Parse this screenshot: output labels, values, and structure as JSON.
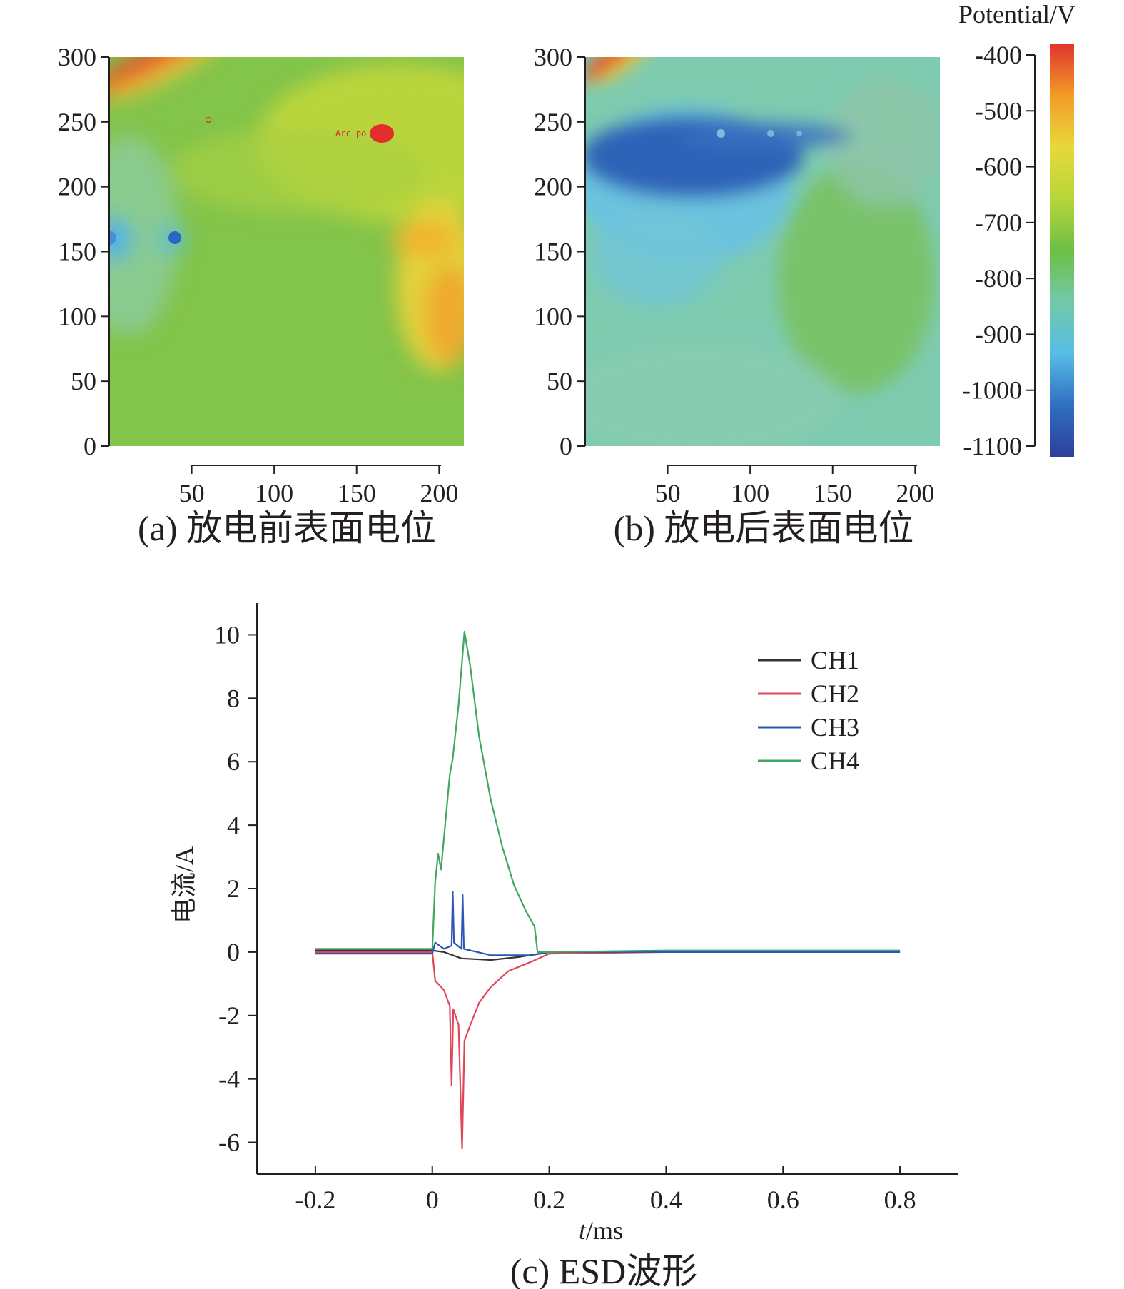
{
  "heatmaps": [
    {
      "caption": "(a) 放电前表面电位",
      "x_ticks": [
        "50",
        "100",
        "150",
        "200"
      ],
      "y_ticks": [
        "0",
        "50",
        "100",
        "150",
        "200",
        "250",
        "300"
      ],
      "annotation": "Arc po",
      "x_range": [
        0,
        215
      ],
      "y_range": [
        0,
        300
      ]
    },
    {
      "caption": "(b) 放电后表面电位",
      "x_ticks": [
        "50",
        "100",
        "150",
        "200"
      ],
      "y_ticks": [
        "0",
        "50",
        "100",
        "150",
        "200",
        "250",
        "300"
      ],
      "x_range": [
        0,
        215
      ],
      "y_range": [
        0,
        300
      ]
    }
  ],
  "colorbar": {
    "title": "Potential/V",
    "ticks": [
      "-400",
      "-500",
      "-600",
      "-700",
      "-800",
      "-900",
      "-1000",
      "-1100"
    ],
    "range": [
      -1100,
      -400
    ],
    "colors": [
      "#2f3f9c",
      "#2f6fc0",
      "#56bde6",
      "#72c9a8",
      "#6dbf45",
      "#b6d63a",
      "#e8d83a",
      "#f39c28",
      "#e0352a"
    ]
  },
  "chart_data": {
    "type": "line",
    "caption": "(c)  ESD波形",
    "xlabel": "t/ms",
    "ylabel": "电流/A",
    "xlim": [
      -0.3,
      0.9
    ],
    "ylim": [
      -7,
      11
    ],
    "x_ticks": [
      "-0.2",
      "0",
      "0.2",
      "0.4",
      "0.6",
      "0.8"
    ],
    "y_ticks": [
      "-6",
      "-4",
      "-2",
      "0",
      "2",
      "4",
      "6",
      "8",
      "10"
    ],
    "legend_position": "top-right",
    "series": [
      {
        "name": "CH1",
        "color": "#333333",
        "points": [
          [
            -0.2,
            0.05
          ],
          [
            0.0,
            0.05
          ],
          [
            0.02,
            0.0
          ],
          [
            0.05,
            -0.2
          ],
          [
            0.1,
            -0.25
          ],
          [
            0.15,
            -0.15
          ],
          [
            0.2,
            0.0
          ],
          [
            0.4,
            0.0
          ],
          [
            0.6,
            0.0
          ],
          [
            0.8,
            0.0
          ]
        ]
      },
      {
        "name": "CH2",
        "color": "#e0485a",
        "points": [
          [
            -0.2,
            0.0
          ],
          [
            0.0,
            0.0
          ],
          [
            0.005,
            -0.9
          ],
          [
            0.02,
            -1.2
          ],
          [
            0.03,
            -1.7
          ],
          [
            0.033,
            -4.2
          ],
          [
            0.036,
            -1.8
          ],
          [
            0.045,
            -2.3
          ],
          [
            0.051,
            -6.2
          ],
          [
            0.055,
            -2.8
          ],
          [
            0.065,
            -2.3
          ],
          [
            0.08,
            -1.6
          ],
          [
            0.1,
            -1.1
          ],
          [
            0.13,
            -0.6
          ],
          [
            0.17,
            -0.3
          ],
          [
            0.2,
            -0.05
          ],
          [
            0.4,
            0.0
          ],
          [
            0.6,
            0.0
          ],
          [
            0.8,
            0.0
          ]
        ]
      },
      {
        "name": "CH3",
        "color": "#2d55b5",
        "points": [
          [
            -0.2,
            -0.05
          ],
          [
            0.0,
            -0.05
          ],
          [
            0.005,
            0.3
          ],
          [
            0.02,
            0.1
          ],
          [
            0.033,
            0.2
          ],
          [
            0.035,
            1.9
          ],
          [
            0.037,
            0.3
          ],
          [
            0.05,
            0.1
          ],
          [
            0.052,
            1.8
          ],
          [
            0.054,
            0.1
          ],
          [
            0.1,
            -0.1
          ],
          [
            0.17,
            -0.1
          ],
          [
            0.2,
            0.0
          ],
          [
            0.4,
            0.0
          ],
          [
            0.6,
            0.0
          ],
          [
            0.8,
            0.0
          ]
        ]
      },
      {
        "name": "CH4",
        "color": "#3fa760",
        "points": [
          [
            -0.2,
            0.1
          ],
          [
            0.0,
            0.1
          ],
          [
            0.005,
            2.2
          ],
          [
            0.01,
            3.1
          ],
          [
            0.015,
            2.6
          ],
          [
            0.03,
            5.6
          ],
          [
            0.035,
            6.1
          ],
          [
            0.045,
            7.8
          ],
          [
            0.055,
            10.1
          ],
          [
            0.065,
            9.0
          ],
          [
            0.08,
            6.8
          ],
          [
            0.1,
            4.8
          ],
          [
            0.12,
            3.3
          ],
          [
            0.14,
            2.1
          ],
          [
            0.16,
            1.3
          ],
          [
            0.175,
            0.8
          ],
          [
            0.18,
            0.0
          ],
          [
            0.2,
            0.0
          ],
          [
            0.4,
            0.05
          ],
          [
            0.6,
            0.05
          ],
          [
            0.8,
            0.05
          ]
        ]
      }
    ]
  }
}
